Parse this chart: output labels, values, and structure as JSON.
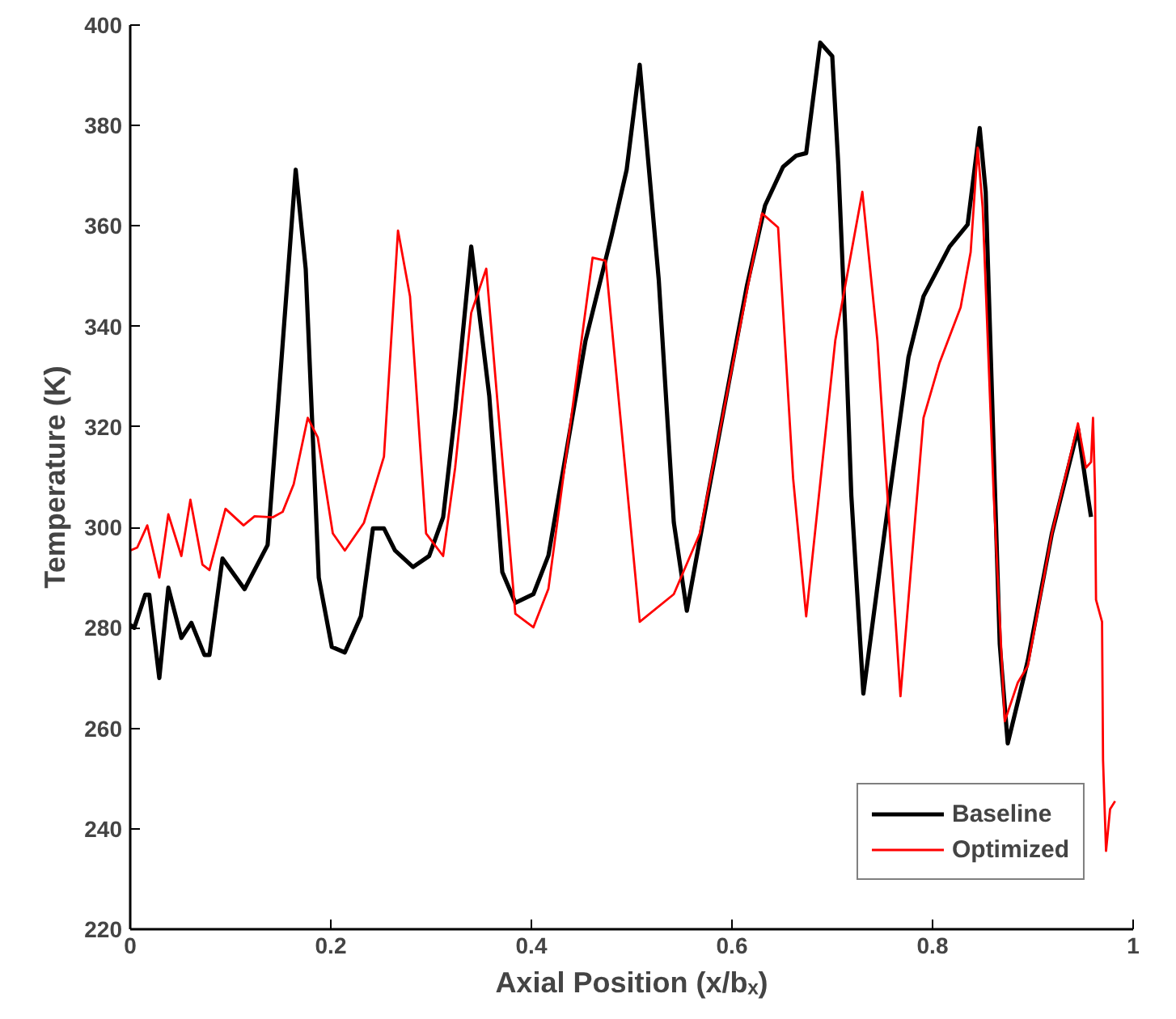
{
  "chart_data": {
    "type": "line",
    "xlabel": "Axial Position (x/bₓ)",
    "ylabel": "Temperature (K)",
    "xlim": [
      0,
      1
    ],
    "ylim": [
      220,
      400
    ],
    "xticks": [
      0,
      0.2,
      0.4,
      0.6,
      0.8,
      1
    ],
    "yticks": [
      220,
      240,
      260,
      280,
      300,
      320,
      340,
      360,
      380,
      400
    ],
    "grid": false,
    "legend": "bottom right",
    "line_style": "solid",
    "marker": "none",
    "series": [
      {
        "name": "Baseline",
        "color": "#000000",
        "x": [
          0,
          0.004,
          0.015,
          0.019,
          0.029,
          0.038,
          0.051,
          0.061,
          0.074,
          0.079,
          0.092,
          0.114,
          0.137,
          0.165,
          0.175,
          0.188,
          0.201,
          0.214,
          0.23,
          0.242,
          0.253,
          0.264,
          0.282,
          0.298,
          0.312,
          0.324,
          0.34,
          0.358,
          0.371,
          0.384,
          0.402,
          0.417,
          0.454,
          0.48,
          0.495,
          0.508,
          0.527,
          0.542,
          0.555,
          0.578,
          0.615,
          0.633,
          0.651,
          0.664,
          0.674,
          0.688,
          0.7,
          0.706,
          0.713,
          0.719,
          0.731,
          0.752,
          0.776,
          0.791,
          0.817,
          0.835,
          0.847,
          0.853,
          0.861,
          0.867,
          0.875,
          0.895,
          0.919,
          0.945,
          0.953,
          0.958
        ],
        "values": [
          280.6,
          280,
          286.6,
          286.6,
          270,
          288,
          278,
          281,
          274.6,
          274.6,
          293.8,
          287.7,
          296.5,
          371.2,
          351.4,
          290,
          276.2,
          275.1,
          282.3,
          299.8,
          299.8,
          295.4,
          292.1,
          294.3,
          302,
          322.9,
          355.9,
          326.2,
          291.1,
          285,
          286.7,
          294.4,
          337.2,
          358.1,
          371.2,
          392.1,
          349.3,
          301,
          283.4,
          308.6,
          348.2,
          364.1,
          371.8,
          374,
          374.5,
          396.5,
          393.8,
          372.3,
          339.4,
          306.4,
          266.9,
          298.8,
          333.9,
          346,
          355.9,
          360.3,
          379.5,
          366.8,
          315.2,
          276.8,
          257,
          273.5,
          298.8,
          319.6,
          308.6,
          302.1
        ]
      },
      {
        "name": "Optimized",
        "color": "#ff0000",
        "x": [
          0,
          0.007,
          0.017,
          0.029,
          0.038,
          0.051,
          0.06,
          0.072,
          0.079,
          0.095,
          0.113,
          0.124,
          0.142,
          0.152,
          0.163,
          0.177,
          0.187,
          0.202,
          0.214,
          0.233,
          0.253,
          0.267,
          0.279,
          0.295,
          0.312,
          0.324,
          0.34,
          0.355,
          0.384,
          0.402,
          0.417,
          0.461,
          0.474,
          0.508,
          0.542,
          0.568,
          0.63,
          0.646,
          0.661,
          0.674,
          0.703,
          0.73,
          0.745,
          0.768,
          0.791,
          0.807,
          0.828,
          0.838,
          0.845,
          0.85,
          0.861,
          0.872,
          0.885,
          0.895,
          0.919,
          0.945,
          0.953,
          0.958,
          0.96,
          0.962,
          0.963,
          0.969,
          0.97,
          0.973,
          0.977,
          0.982
        ],
        "values": [
          295.4,
          296,
          300.4,
          290,
          302.6,
          294.3,
          305.5,
          292.6,
          291.5,
          303.7,
          300.4,
          302.2,
          302,
          303.1,
          308.6,
          321.8,
          317.9,
          298.8,
          295.4,
          300.9,
          314.1,
          359.1,
          346,
          298.8,
          294.3,
          311.9,
          342.7,
          351.5,
          282.8,
          280.1,
          287.8,
          353.7,
          353.1,
          281.2,
          286.7,
          298.8,
          362.5,
          359.7,
          309.7,
          282.3,
          337.2,
          366.8,
          337.2,
          266.4,
          321.8,
          332.8,
          343.8,
          354.8,
          375.6,
          363.6,
          306.4,
          261.4,
          269.1,
          272.4,
          298.8,
          320.7,
          311.9,
          313,
          321.8,
          307.5,
          285.6,
          281.2,
          253.7,
          235.6,
          243.9,
          245.5
        ]
      }
    ]
  }
}
